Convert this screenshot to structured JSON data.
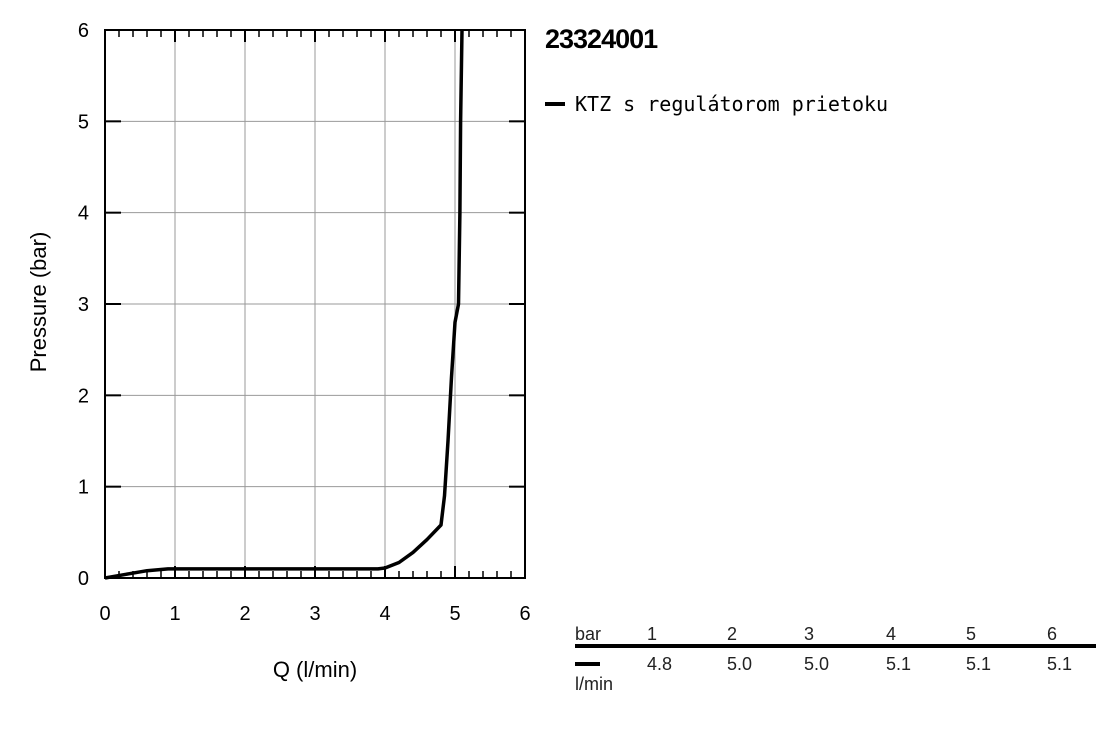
{
  "chart_data": {
    "type": "line",
    "title": "23324001",
    "xlabel": "Q (l/min)",
    "ylabel": "Pressure (bar)",
    "xlim": [
      0,
      6
    ],
    "ylim": [
      0,
      6
    ],
    "x_ticks": [
      "0",
      "1",
      "2",
      "3",
      "4",
      "5",
      "6"
    ],
    "y_ticks": [
      "0",
      "1",
      "2",
      "3",
      "4",
      "5",
      "6"
    ],
    "grid": true,
    "legend_position": "top-right-outside",
    "series": [
      {
        "name": "KTZ s regulátorom prietoku",
        "color": "#000000",
        "x": [
          0,
          0.3,
          0.6,
          0.9,
          1.0,
          2.0,
          3.0,
          3.9,
          4.0,
          4.2,
          4.4,
          4.6,
          4.8,
          4.85,
          4.9,
          4.95,
          5.0,
          5.05,
          5.07,
          5.08,
          5.1
        ],
        "y": [
          0,
          0.04,
          0.08,
          0.1,
          0.1,
          0.1,
          0.1,
          0.1,
          0.11,
          0.17,
          0.28,
          0.42,
          0.58,
          0.9,
          1.5,
          2.2,
          2.8,
          3.0,
          4.0,
          5.0,
          6.0
        ]
      }
    ]
  },
  "table": {
    "header_unit": "bar",
    "header_values": [
      "1",
      "2",
      "3",
      "4",
      "5",
      "6"
    ],
    "row_values": [
      "4.8",
      "5.0",
      "5.0",
      "5.1",
      "5.1",
      "5.1"
    ],
    "row_unit": "l/min"
  }
}
